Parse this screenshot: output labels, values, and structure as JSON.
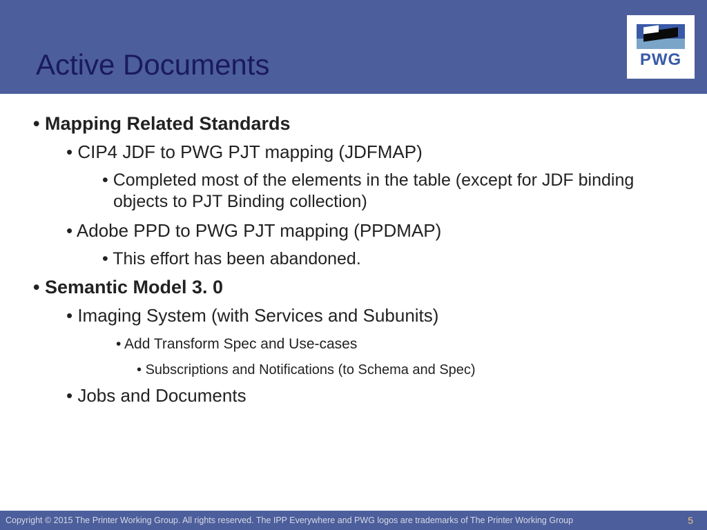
{
  "header": {
    "title": "Active Documents",
    "logo_text": "PWG",
    "band_color": "#4c5e9b",
    "title_color": "#1a1a5e"
  },
  "content": {
    "sections": [
      {
        "heading": "Mapping Related Standards",
        "items": [
          {
            "text": "CIP4 JDF to PWG PJT mapping (JDFMAP)",
            "sub": [
              "Completed most of the elements in the table (except for JDF binding objects to PJT Binding collection)"
            ]
          },
          {
            "text": "Adobe PPD to PWG PJT mapping (PPDMAP)",
            "sub": [
              "This effort has been abandoned."
            ]
          }
        ]
      },
      {
        "heading": "Semantic Model 3. 0",
        "items": [
          {
            "text": "Imaging System (with Services and Subunits)",
            "sub_small": [
              "Add Transform Spec and Use-cases"
            ],
            "sub_small_nested": [
              "Subscriptions and Notifications (to Schema and Spec)"
            ]
          },
          {
            "text": "Jobs and Documents"
          }
        ]
      }
    ]
  },
  "footer": {
    "copyright": "Copyright © 2015 The Printer Working Group. All rights reserved. The IPP Everywhere and PWG logos are trademarks of The Printer Working Group",
    "page_number": "5",
    "band_color": "#4c5e9b",
    "text_color": "#d7dae8",
    "pagenum_color": "#f2c48a"
  }
}
